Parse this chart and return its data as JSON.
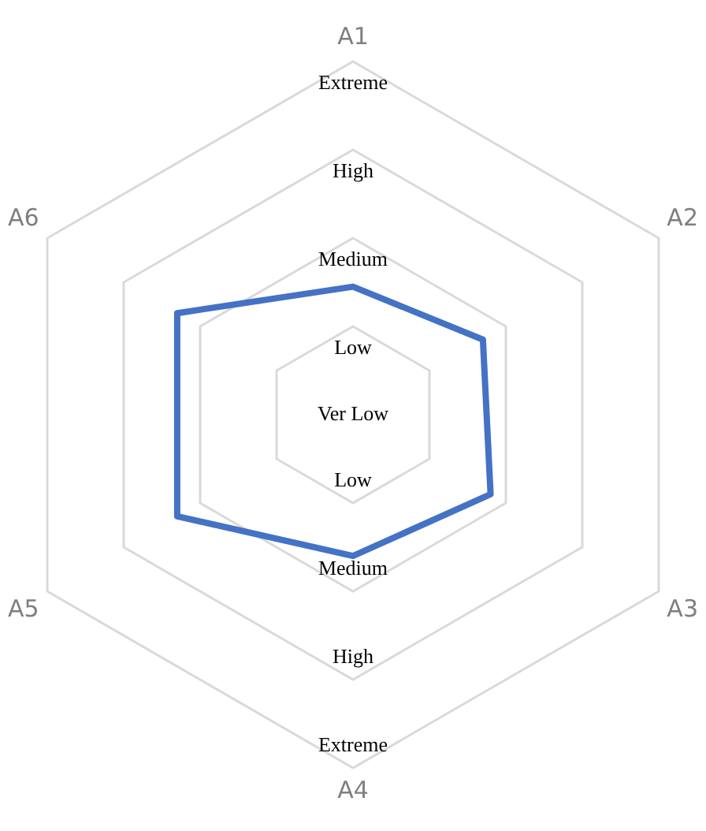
{
  "chart_data": {
    "type": "radar",
    "categories": [
      "A1",
      "A2",
      "A3",
      "A4",
      "A5",
      "A6"
    ],
    "series": [
      {
        "color": "#4472c4",
        "values": [
          1.45,
          1.7,
          1.8,
          1.6,
          2.3,
          2.3
        ]
      }
    ],
    "ylim": [
      0,
      4
    ],
    "yticks": [
      {
        "value": 0,
        "label": "Ver Low"
      },
      {
        "value": 1,
        "label": "Low"
      },
      {
        "value": 2,
        "label": "Medium"
      },
      {
        "value": 3,
        "label": "High"
      },
      {
        "value": 4,
        "label": "Extreme"
      }
    ],
    "grid": true,
    "legend": false,
    "marker": "none"
  }
}
